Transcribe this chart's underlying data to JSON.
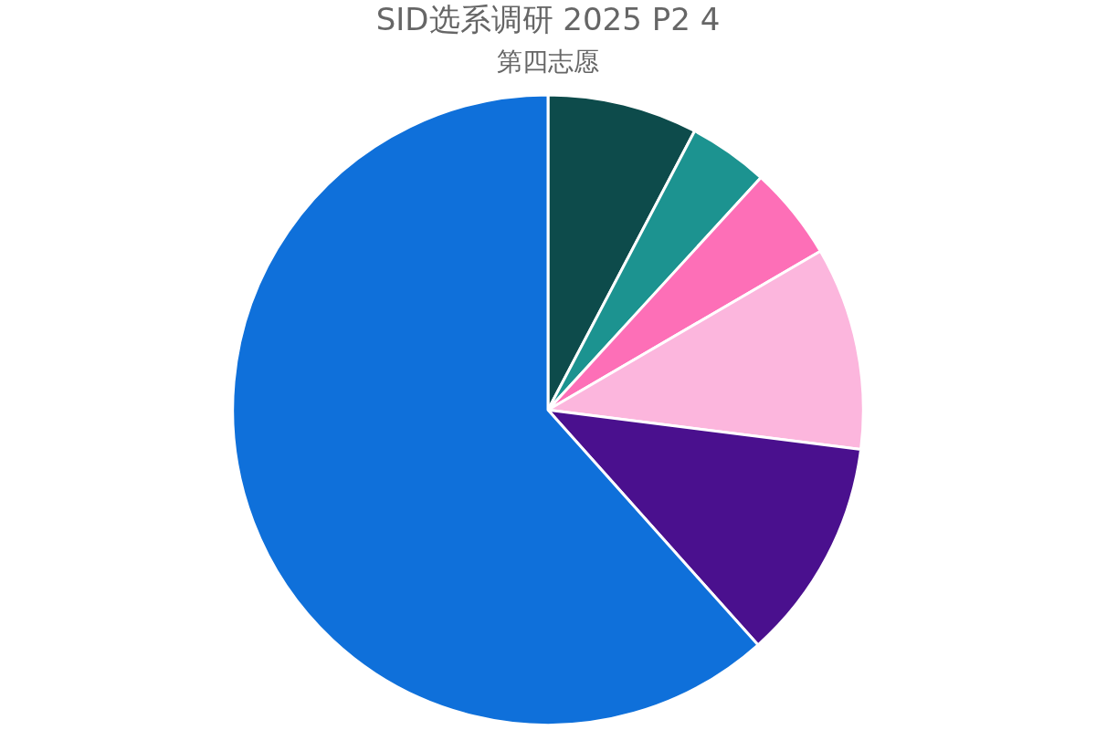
{
  "chart_data": {
    "type": "pie",
    "title": "SID选系调研 2025 P2 4",
    "subtitle": "第四志愿",
    "categories": [
      null,
      null,
      null,
      null,
      null,
      null
    ],
    "values": [
      7.7,
      4.1,
      4.8,
      10.4,
      11.4,
      61.6
    ],
    "colors": [
      "#0d4b4b",
      "#1c9390",
      "#fd6fb7",
      "#fcb6dd",
      "#4a108e",
      "#0f70da"
    ]
  }
}
